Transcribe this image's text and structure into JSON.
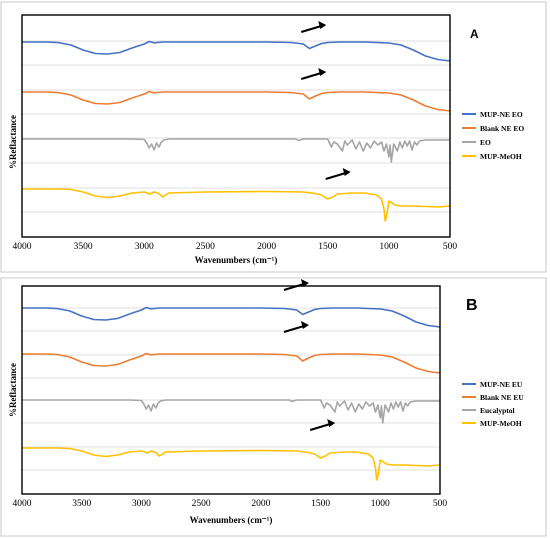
{
  "chart_data": [
    {
      "type": "line",
      "panel_label": "A",
      "xlabel": "Wavenumbers (cm⁻¹)",
      "ylabel": "%Reflactance",
      "xlim": [
        4000,
        500
      ],
      "x_reversed": true,
      "xticks": [
        4000,
        3500,
        3000,
        2500,
        2000,
        1500,
        1000,
        500
      ],
      "grid": true,
      "legend_position": "right",
      "series": [
        {
          "name": "MUP-NE EO",
          "color": "#4472c4",
          "offset": 0,
          "x": [
            4000,
            3800,
            3700,
            3600,
            3500,
            3400,
            3300,
            3200,
            3100,
            3000,
            2960,
            2920,
            2850,
            2800,
            2500,
            2000,
            1800,
            1700,
            1650,
            1600,
            1550,
            1500,
            1400,
            1200,
            1000,
            900,
            800,
            700,
            600,
            500
          ],
          "y": [
            0,
            0,
            -0.6,
            -3,
            -8,
            -11.5,
            -12,
            -10.5,
            -6,
            -2,
            0.5,
            -0.8,
            0,
            0,
            0,
            0,
            -0.5,
            -2,
            -6.5,
            -4,
            -1.5,
            -0.5,
            0,
            0,
            -1,
            -3,
            -8,
            -14,
            -17.5,
            -19
          ]
        },
        {
          "name": "Blank NE EO",
          "color": "#ed7d31",
          "offset": 50,
          "x": [
            4000,
            3800,
            3700,
            3600,
            3500,
            3400,
            3300,
            3200,
            3100,
            3000,
            2960,
            2920,
            2850,
            2800,
            2500,
            2000,
            1800,
            1700,
            1650,
            1600,
            1550,
            1500,
            1400,
            1200,
            1000,
            900,
            800,
            700,
            600,
            500
          ],
          "y": [
            0,
            0,
            -0.6,
            -3,
            -8,
            -11.5,
            -12,
            -10.5,
            -6,
            -2,
            0.5,
            -0.8,
            0,
            0,
            0,
            0,
            -0.5,
            -2,
            -7,
            -4,
            -1.5,
            -0.5,
            0,
            0,
            -1,
            -3,
            -8,
            -14,
            -17.5,
            -19
          ]
        },
        {
          "name": "EO",
          "color": "#a5a5a5",
          "offset": 97,
          "x": [
            4000,
            3100,
            3000,
            2980,
            2960,
            2940,
            2920,
            2900,
            2880,
            2860,
            2840,
            2800,
            2000,
            1760,
            1740,
            1700,
            1500,
            1470,
            1450,
            1420,
            1380,
            1360,
            1340,
            1300,
            1270,
            1240,
            1210,
            1180,
            1150,
            1120,
            1090,
            1060,
            1040,
            1020,
            1000,
            990,
            980,
            960,
            930,
            910,
            890,
            870,
            850,
            830,
            810,
            790,
            770,
            750,
            700,
            600,
            500
          ],
          "y": [
            0,
            0,
            -0.5,
            -4,
            -9,
            -5,
            -11,
            -4,
            -8,
            -3,
            -1,
            0,
            0,
            0,
            -1.5,
            0,
            0,
            -8,
            -3,
            -5,
            -12,
            -2,
            -6,
            -1,
            -10,
            -3,
            -12,
            -4,
            -9,
            -2,
            -6,
            -3,
            -12,
            -5,
            -18,
            -6,
            -23,
            -5,
            -12,
            -3,
            -9,
            -2,
            -7,
            -2,
            -11,
            -3,
            -6,
            -2,
            -1,
            -1,
            -1
          ]
        },
        {
          "name": "MUP-MeOH",
          "color": "#ffc000",
          "offset": 147,
          "x": [
            4000,
            3700,
            3600,
            3500,
            3400,
            3300,
            3200,
            3100,
            3000,
            2950,
            2920,
            2880,
            2850,
            2800,
            2500,
            2000,
            1700,
            1600,
            1550,
            1500,
            1460,
            1420,
            1300,
            1200,
            1100,
            1060,
            1040,
            1030,
            1020,
            1000,
            950,
            900,
            800,
            600,
            500
          ],
          "y": [
            0,
            0,
            -0.5,
            -3,
            -7,
            -8.5,
            -7,
            -4,
            -3,
            -5,
            -3,
            -4.5,
            -8,
            -4,
            -3,
            -2.5,
            -3,
            -4.5,
            -6,
            -10,
            -8,
            -5,
            -4,
            -4,
            -6,
            -10,
            -20,
            -32,
            -28,
            -12,
            -16,
            -17,
            -17,
            -18,
            -17
          ]
        }
      ],
      "arrows": [
        {
          "x": 1700,
          "dy": -12
        },
        {
          "x": 1700,
          "dy": 35
        },
        {
          "x": 1500,
          "dy": 135
        }
      ]
    },
    {
      "type": "line",
      "panel_label": "B",
      "xlabel": "Wavenumbers (cm⁻¹)",
      "ylabel": "%Reflactance",
      "xlim": [
        4000,
        500
      ],
      "x_reversed": true,
      "xticks": [
        4000,
        3500,
        3000,
        2500,
        2000,
        1500,
        1000,
        500
      ],
      "grid": true,
      "legend_position": "right",
      "series": [
        {
          "name": "MUP-NE EU",
          "color": "#4472c4",
          "offset": 0,
          "x": [
            4000,
            3800,
            3700,
            3600,
            3500,
            3400,
            3300,
            3200,
            3100,
            3000,
            2960,
            2920,
            2850,
            2800,
            2500,
            2000,
            1800,
            1700,
            1650,
            1600,
            1550,
            1500,
            1400,
            1200,
            1000,
            900,
            800,
            700,
            600,
            500
          ],
          "y": [
            0,
            0,
            -0.6,
            -3,
            -8,
            -11.5,
            -12,
            -10.5,
            -6,
            -2,
            0.5,
            -0.8,
            0,
            0,
            0,
            0,
            -0.5,
            -2,
            -6.5,
            -4,
            -1.5,
            -0.5,
            0,
            0,
            -1,
            -3,
            -8,
            -14,
            -17.5,
            -19
          ]
        },
        {
          "name": "Blank NE EU",
          "color": "#ed7d31",
          "offset": 46,
          "x": [
            4000,
            3800,
            3700,
            3600,
            3500,
            3400,
            3300,
            3200,
            3100,
            3000,
            2960,
            2920,
            2850,
            2800,
            2500,
            2000,
            1800,
            1700,
            1650,
            1600,
            1550,
            1500,
            1400,
            1200,
            1000,
            900,
            800,
            700,
            600,
            500
          ],
          "y": [
            0,
            0,
            -0.6,
            -3,
            -8,
            -11.5,
            -12,
            -10.5,
            -6,
            -2,
            0.5,
            -0.8,
            0,
            0,
            0,
            0,
            -0.5,
            -2,
            -7,
            -4,
            -1.5,
            -0.5,
            0,
            0,
            -1,
            -3,
            -8,
            -14,
            -17.5,
            -19
          ]
        },
        {
          "name": "Eucalyptol",
          "color": "#a5a5a5",
          "offset": 92,
          "x": [
            4000,
            3100,
            3000,
            2980,
            2960,
            2940,
            2920,
            2900,
            2880,
            2860,
            2840,
            2800,
            2000,
            1760,
            1740,
            1700,
            1500,
            1470,
            1450,
            1420,
            1380,
            1360,
            1340,
            1300,
            1270,
            1240,
            1210,
            1180,
            1150,
            1120,
            1090,
            1060,
            1040,
            1020,
            1000,
            990,
            980,
            960,
            930,
            910,
            890,
            870,
            850,
            830,
            810,
            790,
            770,
            750,
            700,
            600,
            500
          ],
          "y": [
            0,
            0,
            -0.5,
            -4,
            -9,
            -5,
            -11,
            -4,
            -8,
            -3,
            -1,
            0,
            0,
            0,
            -1.5,
            0,
            0,
            -8,
            -3,
            -5,
            -12,
            -2,
            -6,
            -1,
            -10,
            -3,
            -12,
            -4,
            -9,
            -2,
            -6,
            -3,
            -12,
            -5,
            -18,
            -6,
            -23,
            -5,
            -12,
            -3,
            -9,
            -2,
            -7,
            -2,
            -11,
            -3,
            -6,
            -2,
            -1,
            -1,
            -1
          ]
        },
        {
          "name": "MUP-MeOH",
          "color": "#ffc000",
          "offset": 140,
          "x": [
            4000,
            3700,
            3600,
            3500,
            3400,
            3300,
            3200,
            3100,
            3000,
            2950,
            2920,
            2880,
            2850,
            2800,
            2500,
            2000,
            1700,
            1600,
            1550,
            1500,
            1460,
            1420,
            1300,
            1200,
            1100,
            1060,
            1040,
            1030,
            1020,
            1000,
            950,
            900,
            800,
            600,
            500
          ],
          "y": [
            0,
            0,
            -0.5,
            -3,
            -7,
            -8.5,
            -7,
            -4,
            -3,
            -5,
            -3,
            -4.5,
            -8,
            -4,
            -3,
            -2.5,
            -3,
            -4.5,
            -6,
            -10,
            -8,
            -5,
            -4,
            -4,
            -6,
            -10,
            -20,
            -32,
            -28,
            -12,
            -16,
            -17,
            -17,
            -18,
            -17
          ]
        }
      ],
      "arrows": [
        {
          "x": 1790,
          "dy": -20
        },
        {
          "x": 1790,
          "dy": 22
        },
        {
          "x": 1570,
          "dy": 120
        }
      ]
    }
  ]
}
